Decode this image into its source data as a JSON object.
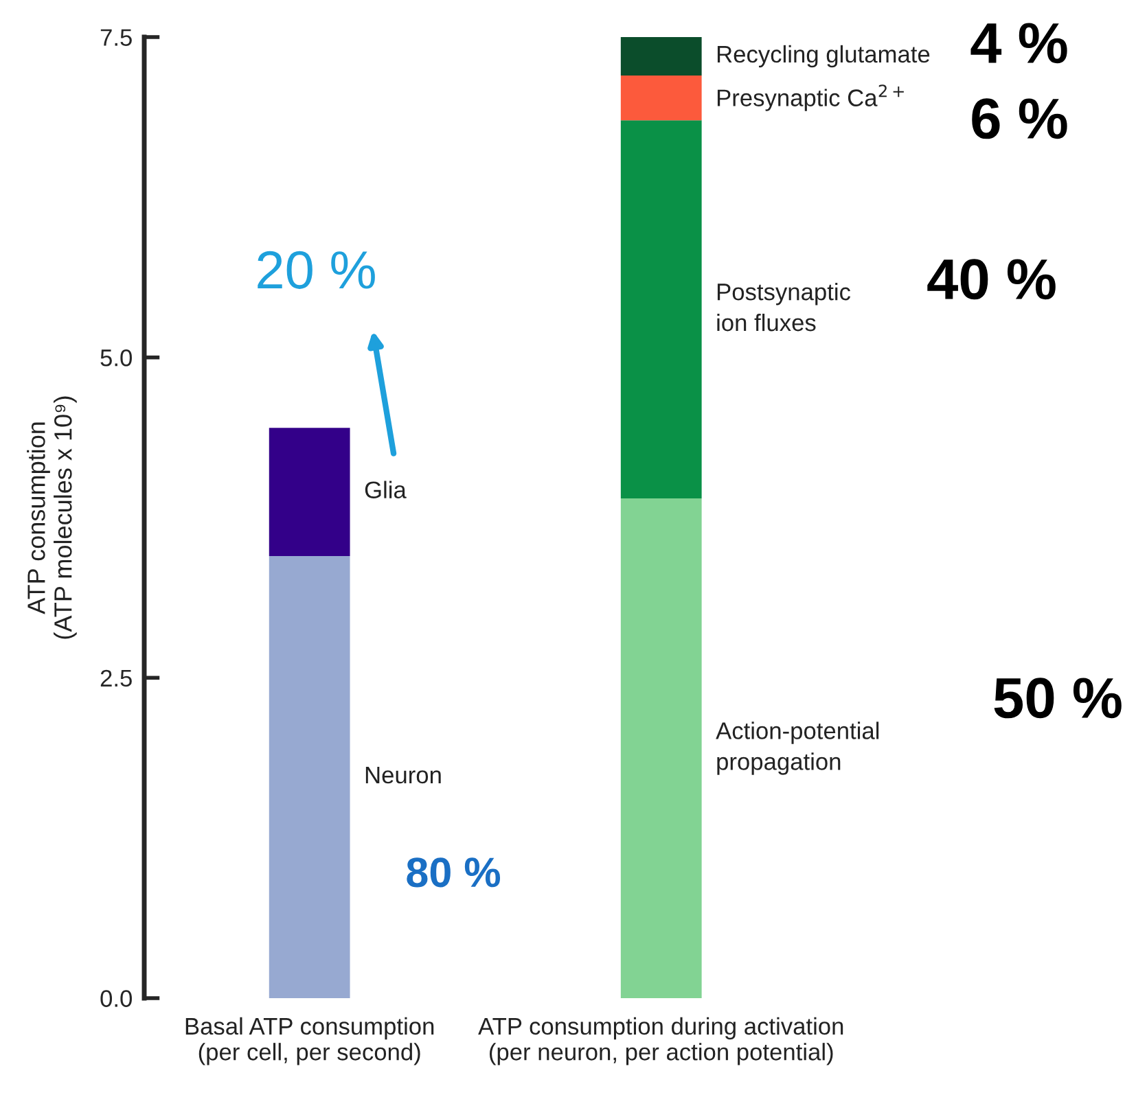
{
  "chart_data": {
    "type": "bar",
    "stacked": true,
    "ylabel": "ATP consumption\n(ATP molecules x 10⁹)",
    "categories": [
      "Basal ATP consumption\n(per cell, per second)",
      "ATP consumption during activation\n(per neuron, per action potential)"
    ],
    "series": [
      {
        "name": "Neuron",
        "color": "#97a9d1",
        "values": [
          3.45,
          null
        ]
      },
      {
        "name": "Glia",
        "color": "#330089",
        "values": [
          1.0,
          null
        ]
      },
      {
        "name": "Action-potential\npropagation",
        "color": "#82d393",
        "values": [
          null,
          3.9
        ]
      },
      {
        "name": "Postsynaptic\nion fluxes",
        "color": "#0a9147",
        "values": [
          null,
          2.95
        ]
      },
      {
        "name": "Presynaptic Ca$^{2+}$",
        "color": "#fc5a3c",
        "values": [
          null,
          0.35
        ]
      },
      {
        "name": "Recycling glutamate",
        "color": "#0b4d2b",
        "values": [
          null,
          0.3
        ]
      }
    ],
    "ylim": [
      0,
      7.5
    ],
    "yticks": [
      {
        "value": 0,
        "label": "0.0"
      },
      {
        "value": 2.5,
        "label": "2.5"
      },
      {
        "value": 5,
        "label": "5.0"
      },
      {
        "value": 7.5,
        "label": "7.5"
      }
    ],
    "grid": false,
    "legend": false,
    "annotations": [
      "20 %",
      "80 %",
      "4 %",
      "6 %",
      "40 %",
      "50 %"
    ]
  }
}
